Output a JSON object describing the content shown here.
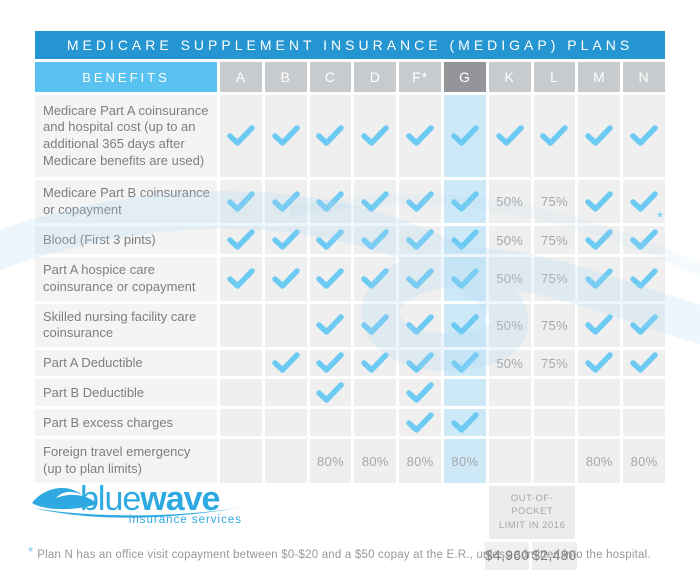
{
  "title": "MEDICARE SUPPLEMENT INSURANCE (MEDIGAP) PLANS",
  "table": {
    "benefits_header": "BENEFITS",
    "plan_columns": [
      "A",
      "B",
      "C",
      "D",
      "F*",
      "G",
      "K",
      "L",
      "M",
      "N"
    ],
    "highlighted_column": "G",
    "rows": [
      {
        "benefit": "Medicare Part A coinsurance and hospital cost (up to an additional 365 days after Medicare benefits are used)",
        "cells": [
          "check",
          "check",
          "check",
          "check",
          "check",
          "check",
          "check",
          "check",
          "check",
          "check"
        ]
      },
      {
        "benefit": "Medicare Part B coinsurance or copayment",
        "cells": [
          "check",
          "check",
          "check",
          "check",
          "check",
          "check",
          "50%",
          "75%",
          "check",
          "check*"
        ]
      },
      {
        "benefit": "Blood (First 3 pints)",
        "cells": [
          "check",
          "check",
          "check",
          "check",
          "check",
          "check",
          "50%",
          "75%",
          "check",
          "check"
        ]
      },
      {
        "benefit": "Part A hospice care coinsurance or copayment",
        "cells": [
          "check",
          "check",
          "check",
          "check",
          "check",
          "check",
          "50%",
          "75%",
          "check",
          "check"
        ]
      },
      {
        "benefit": "Skilled nursing facility care coinsurance",
        "cells": [
          "",
          "",
          "check",
          "check",
          "check",
          "check",
          "50%",
          "75%",
          "check",
          "check"
        ]
      },
      {
        "benefit": "Part A Deductible",
        "cells": [
          "",
          "check",
          "check",
          "check",
          "check",
          "check",
          "50%",
          "75%",
          "check",
          "check"
        ]
      },
      {
        "benefit": "Part B Deductible",
        "cells": [
          "",
          "",
          "check",
          "",
          "check",
          "",
          "",
          "",
          "",
          ""
        ]
      },
      {
        "benefit": "Part B excess charges",
        "cells": [
          "",
          "",
          "",
          "",
          "check",
          "check",
          "",
          "",
          "",
          ""
        ]
      },
      {
        "benefit": "Foreign travel emergency (up to plan limits)",
        "cells": [
          "",
          "",
          "80%",
          "80%",
          "80%",
          "80%",
          "",
          "",
          "80%",
          "80%"
        ]
      }
    ],
    "out_of_pocket": {
      "label": "OUT-OF-POCKET LIMIT IN 2016",
      "applies_to": [
        "K",
        "L"
      ],
      "values": [
        "$4,960",
        "$2,480"
      ]
    }
  },
  "logo": {
    "name_light": "blue",
    "name_bold": "wave",
    "tagline": "insurance services"
  },
  "footnote": {
    "marker": "*",
    "text": "Plan N has an office visit copayment between $0-$20 and a $50 copay at the E.R., unless admitted into the hospital."
  },
  "colors": {
    "title_bar_blue": "#2696D3",
    "benefits_header_blue": "#59C2F0",
    "plan_header_gray": "#C7CBCE",
    "plan_g_header_gray": "#939598",
    "g_column_highlight": "#CDE9F8",
    "check_blue": "#6DCAF2",
    "brand_blue": "#2FA9E1"
  }
}
